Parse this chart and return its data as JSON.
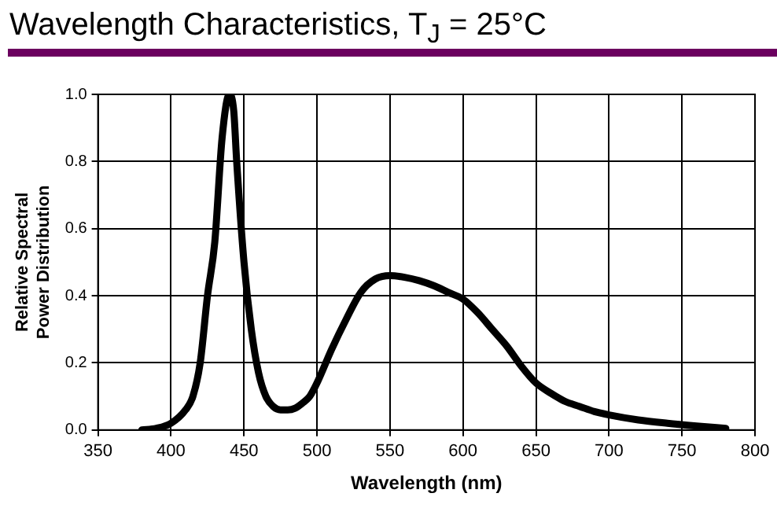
{
  "chart_data": {
    "type": "line",
    "title": "Wavelength Characteristics, T$_{J}$ = 25°C",
    "xlabel": "Wavelength (nm)",
    "ylabel": "Relative Spectral Power Distribution",
    "x": [
      380,
      390,
      400,
      410,
      415,
      420,
      425,
      430,
      435,
      440,
      443,
      445,
      450,
      455,
      460,
      465,
      470,
      475,
      480,
      485,
      490,
      495,
      500,
      510,
      520,
      530,
      540,
      550,
      560,
      570,
      580,
      590,
      600,
      610,
      620,
      630,
      640,
      650,
      660,
      670,
      680,
      690,
      700,
      720,
      740,
      760,
      780
    ],
    "series": [
      {
        "color": "#000000",
        "values": [
          0,
          0.005,
          0.02,
          0.06,
          0.1,
          0.2,
          0.4,
          0.56,
          0.87,
          1.0,
          0.95,
          0.8,
          0.5,
          0.3,
          0.17,
          0.1,
          0.07,
          0.06,
          0.06,
          0.065,
          0.08,
          0.1,
          0.14,
          0.24,
          0.33,
          0.41,
          0.45,
          0.46,
          0.455,
          0.445,
          0.43,
          0.41,
          0.39,
          0.35,
          0.3,
          0.25,
          0.19,
          0.14,
          0.11,
          0.085,
          0.07,
          0.055,
          0.045,
          0.03,
          0.02,
          0.012,
          0.005
        ]
      }
    ],
    "xlim": [
      350,
      800
    ],
    "xticks": [
      350,
      400,
      450,
      500,
      550,
      600,
      650,
      700,
      750,
      800
    ],
    "ylim": [
      0,
      1
    ],
    "yticks": [
      {
        "value": 0,
        "label": "0.0"
      },
      0.2,
      0.4,
      0.6,
      0.8,
      {
        "value": 1,
        "label": "1.0"
      }
    ],
    "grid": true,
    "legend": false,
    "marker": "none",
    "line_style": "solid"
  }
}
